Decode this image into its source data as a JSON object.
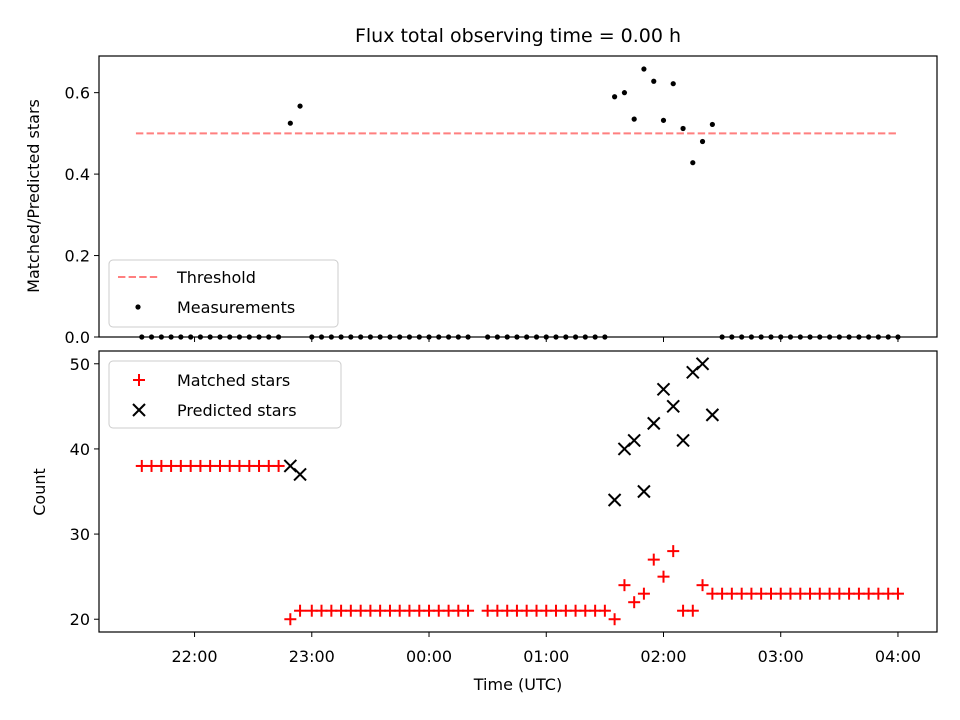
{
  "chart_data": [
    {
      "type": "scatter",
      "title": "Flux total observing time = 0.00 h",
      "xlabel": "",
      "ylabel": "Matched/Predicted stars",
      "x_unit": "hours UTC (22 = 22:00; values above 24 are after midnight)",
      "xlim": [
        21.185,
        28.333
      ],
      "ylim": [
        0,
        0.69
      ],
      "yticks": [
        0.0,
        0.2,
        0.4,
        0.6
      ],
      "ytick_labels": [
        "0.0",
        "0.2",
        "0.4",
        "0.6"
      ],
      "legend_position": "lower-left",
      "threshold": {
        "name": "Threshold",
        "value": 0.5,
        "x_range": [
          21.5,
          28.0
        ],
        "color": "#ff7f7f",
        "style": "dashed"
      },
      "series": [
        {
          "name": "Measurements",
          "color": "#000000",
          "points": [
            [
              21.55,
              0
            ],
            [
              21.633,
              0
            ],
            [
              21.717,
              0
            ],
            [
              21.8,
              0
            ],
            [
              21.883,
              0
            ],
            [
              21.967,
              0
            ],
            [
              22.05,
              0
            ],
            [
              22.133,
              0
            ],
            [
              22.217,
              0
            ],
            [
              22.3,
              0
            ],
            [
              22.383,
              0
            ],
            [
              22.467,
              0
            ],
            [
              22.55,
              0
            ],
            [
              22.633,
              0
            ],
            [
              22.717,
              0
            ],
            [
              22.817,
              0.525
            ],
            [
              22.9,
              0.567
            ],
            [
              23.0,
              0
            ],
            [
              23.083,
              0
            ],
            [
              23.167,
              0
            ],
            [
              23.25,
              0
            ],
            [
              23.333,
              0
            ],
            [
              23.417,
              0
            ],
            [
              23.5,
              0
            ],
            [
              23.583,
              0
            ],
            [
              23.667,
              0
            ],
            [
              23.75,
              0
            ],
            [
              23.833,
              0
            ],
            [
              23.917,
              0
            ],
            [
              24.0,
              0
            ],
            [
              24.083,
              0
            ],
            [
              24.167,
              0
            ],
            [
              24.25,
              0
            ],
            [
              24.333,
              0
            ],
            [
              24.5,
              0
            ],
            [
              24.583,
              0
            ],
            [
              24.667,
              0
            ],
            [
              24.75,
              0
            ],
            [
              24.833,
              0
            ],
            [
              24.917,
              0
            ],
            [
              25.0,
              0
            ],
            [
              25.083,
              0
            ],
            [
              25.167,
              0
            ],
            [
              25.25,
              0
            ],
            [
              25.333,
              0
            ],
            [
              25.417,
              0
            ],
            [
              25.5,
              0
            ],
            [
              25.583,
              0.59
            ],
            [
              25.667,
              0.6
            ],
            [
              25.75,
              0.535
            ],
            [
              25.833,
              0.658
            ],
            [
              25.917,
              0.628
            ],
            [
              26.0,
              0.532
            ],
            [
              26.083,
              0.622
            ],
            [
              26.167,
              0.512
            ],
            [
              26.25,
              0.428
            ],
            [
              26.333,
              0.48
            ],
            [
              26.417,
              0.522
            ],
            [
              26.5,
              0
            ],
            [
              26.583,
              0
            ],
            [
              26.667,
              0
            ],
            [
              26.75,
              0
            ],
            [
              26.833,
              0
            ],
            [
              26.917,
              0
            ],
            [
              27.0,
              0
            ],
            [
              27.083,
              0
            ],
            [
              27.167,
              0
            ],
            [
              27.25,
              0
            ],
            [
              27.333,
              0
            ],
            [
              27.417,
              0
            ],
            [
              27.5,
              0
            ],
            [
              27.583,
              0
            ],
            [
              27.667,
              0
            ],
            [
              27.75,
              0
            ],
            [
              27.833,
              0
            ],
            [
              27.917,
              0
            ],
            [
              28.0,
              0
            ]
          ]
        }
      ]
    },
    {
      "type": "scatter",
      "title": "",
      "xlabel": "Time (UTC)",
      "ylabel": "Count",
      "x_unit": "hours UTC (22 = 22:00; values above 24 are after midnight)",
      "xlim": [
        21.185,
        28.333
      ],
      "ylim": [
        18.5,
        51.5
      ],
      "yticks": [
        20,
        30,
        40,
        50
      ],
      "ytick_labels": [
        "20",
        "30",
        "40",
        "50"
      ],
      "xticks": [
        22,
        23,
        24,
        25,
        26,
        27,
        28
      ],
      "xtick_labels": [
        "22:00",
        "23:00",
        "00:00",
        "01:00",
        "02:00",
        "03:00",
        "04:00"
      ],
      "legend_position": "upper-left",
      "series": [
        {
          "name": "Matched stars",
          "marker": "plus",
          "color": "#ff0000",
          "points": [
            [
              21.55,
              38
            ],
            [
              21.633,
              38
            ],
            [
              21.717,
              38
            ],
            [
              21.8,
              38
            ],
            [
              21.883,
              38
            ],
            [
              21.967,
              38
            ],
            [
              22.05,
              38
            ],
            [
              22.133,
              38
            ],
            [
              22.217,
              38
            ],
            [
              22.3,
              38
            ],
            [
              22.383,
              38
            ],
            [
              22.467,
              38
            ],
            [
              22.55,
              38
            ],
            [
              22.633,
              38
            ],
            [
              22.717,
              38
            ],
            [
              22.817,
              20
            ],
            [
              22.9,
              21
            ],
            [
              23.0,
              21
            ],
            [
              23.083,
              21
            ],
            [
              23.167,
              21
            ],
            [
              23.25,
              21
            ],
            [
              23.333,
              21
            ],
            [
              23.417,
              21
            ],
            [
              23.5,
              21
            ],
            [
              23.583,
              21
            ],
            [
              23.667,
              21
            ],
            [
              23.75,
              21
            ],
            [
              23.833,
              21
            ],
            [
              23.917,
              21
            ],
            [
              24.0,
              21
            ],
            [
              24.083,
              21
            ],
            [
              24.167,
              21
            ],
            [
              24.25,
              21
            ],
            [
              24.333,
              21
            ],
            [
              24.5,
              21
            ],
            [
              24.583,
              21
            ],
            [
              24.667,
              21
            ],
            [
              24.75,
              21
            ],
            [
              24.833,
              21
            ],
            [
              24.917,
              21
            ],
            [
              25.0,
              21
            ],
            [
              25.083,
              21
            ],
            [
              25.167,
              21
            ],
            [
              25.25,
              21
            ],
            [
              25.333,
              21
            ],
            [
              25.417,
              21
            ],
            [
              25.5,
              21
            ],
            [
              25.583,
              20
            ],
            [
              25.667,
              24
            ],
            [
              25.75,
              22
            ],
            [
              25.833,
              23
            ],
            [
              25.917,
              27
            ],
            [
              26.0,
              25
            ],
            [
              26.083,
              28
            ],
            [
              26.167,
              21
            ],
            [
              26.25,
              21
            ],
            [
              26.333,
              24
            ],
            [
              26.417,
              23
            ],
            [
              26.5,
              23
            ],
            [
              26.583,
              23
            ],
            [
              26.667,
              23
            ],
            [
              26.75,
              23
            ],
            [
              26.833,
              23
            ],
            [
              26.917,
              23
            ],
            [
              27.0,
              23
            ],
            [
              27.083,
              23
            ],
            [
              27.167,
              23
            ],
            [
              27.25,
              23
            ],
            [
              27.333,
              23
            ],
            [
              27.417,
              23
            ],
            [
              27.5,
              23
            ],
            [
              27.583,
              23
            ],
            [
              27.667,
              23
            ],
            [
              27.75,
              23
            ],
            [
              27.833,
              23
            ],
            [
              27.917,
              23
            ],
            [
              28.0,
              23
            ]
          ]
        },
        {
          "name": "Predicted stars",
          "marker": "x",
          "color": "#000000",
          "points": [
            [
              22.817,
              38
            ],
            [
              22.9,
              37
            ],
            [
              25.583,
              34
            ],
            [
              25.667,
              40
            ],
            [
              25.75,
              41
            ],
            [
              25.833,
              35
            ],
            [
              25.917,
              43
            ],
            [
              26.0,
              47
            ],
            [
              26.083,
              45
            ],
            [
              26.167,
              41
            ],
            [
              26.25,
              49
            ],
            [
              26.333,
              50
            ],
            [
              26.417,
              44
            ]
          ]
        }
      ]
    }
  ]
}
